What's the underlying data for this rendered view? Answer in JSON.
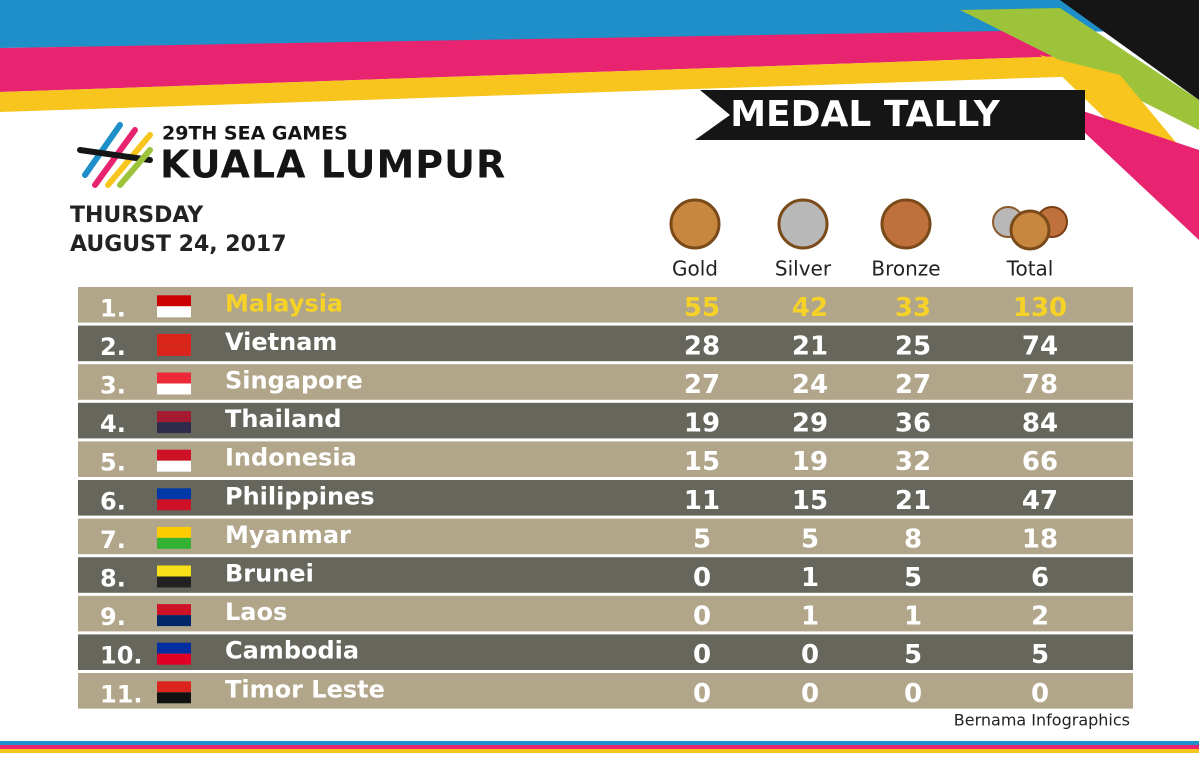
{
  "header": {
    "subtitle": "29TH SEA GAMES",
    "title": "KUALA LUMPUR",
    "banner": "MEDAL TALLY",
    "day": "THURSDAY",
    "date": "AUGUST 24, 2017"
  },
  "table": {
    "columns": [
      "Gold",
      "Silver",
      "Bronze",
      "Total"
    ],
    "rows": [
      [
        "1.",
        "Malaysia",
        55,
        42,
        33,
        130
      ],
      [
        "2.",
        "Vietnam",
        28,
        21,
        25,
        74
      ],
      [
        "3.",
        "Singapore",
        27,
        24,
        27,
        78
      ],
      [
        "4.",
        "Thailand",
        19,
        29,
        36,
        84
      ],
      [
        "5.",
        "Indonesia",
        15,
        19,
        32,
        66
      ],
      [
        "6.",
        "Philippines",
        11,
        15,
        21,
        47
      ],
      [
        "7.",
        "Myanmar",
        5,
        5,
        8,
        18
      ],
      [
        "8.",
        "Brunei",
        0,
        1,
        5,
        6
      ],
      [
        "9.",
        "Laos",
        0,
        1,
        1,
        2
      ],
      [
        "10.",
        "Cambodia",
        0,
        0,
        5,
        5
      ],
      [
        "11.",
        "Timor Leste",
        0,
        0,
        0,
        0
      ]
    ]
  },
  "footer": {
    "credit": "Bernama Infographics"
  }
}
